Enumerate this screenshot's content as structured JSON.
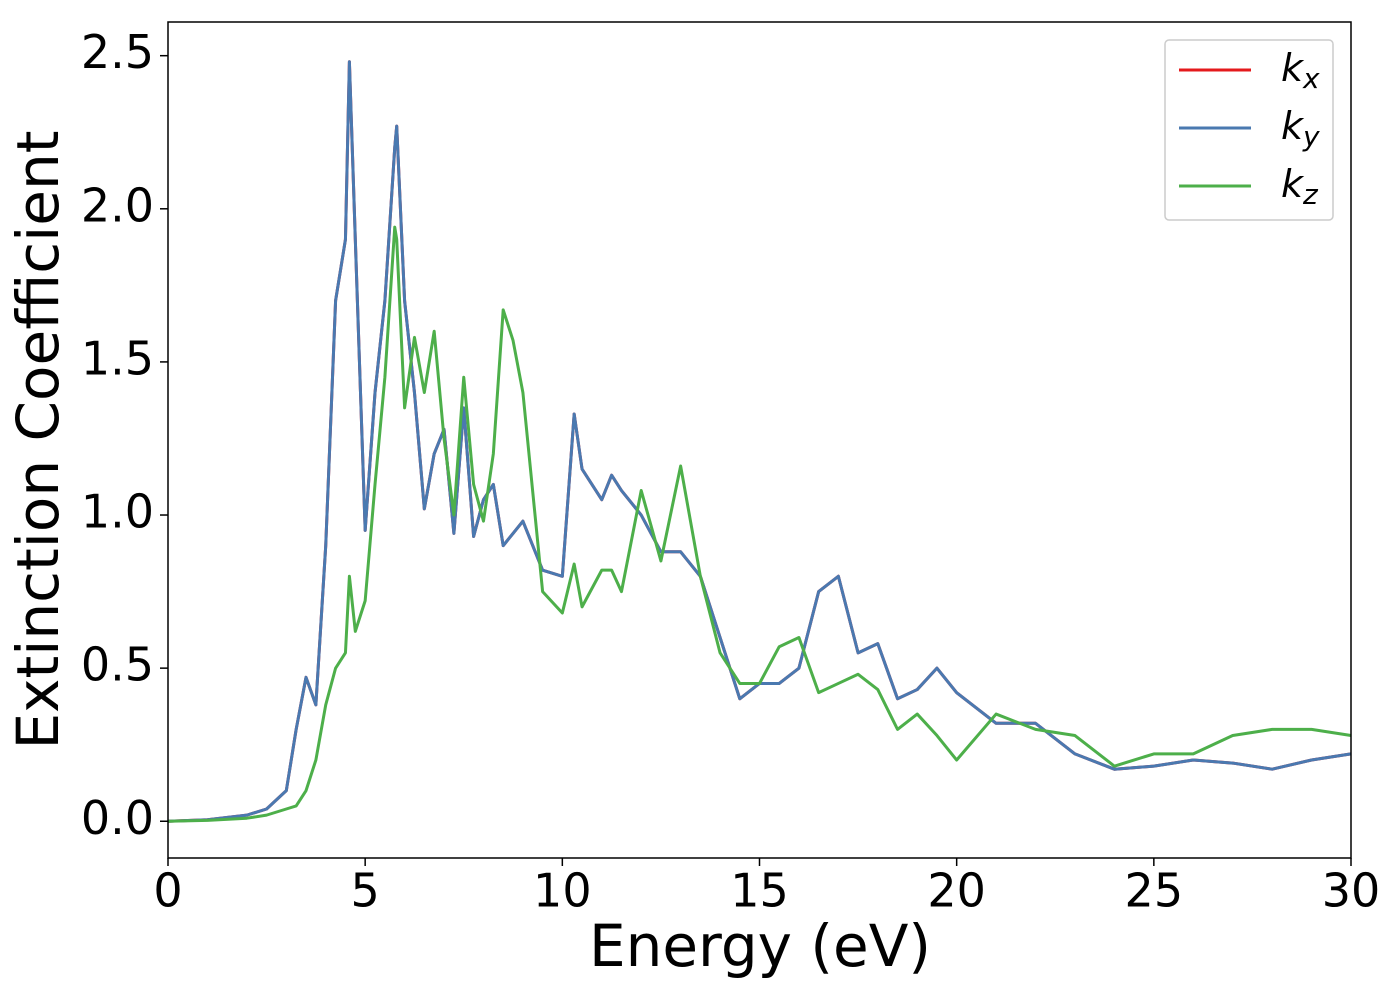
{
  "chart_data": {
    "type": "line",
    "xlabel": "Energy (eV)",
    "ylabel": "Extinction Coefficient",
    "x": [
      0,
      1,
      2,
      2.5,
      3,
      3.25,
      3.5,
      3.75,
      4,
      4.25,
      4.5,
      4.6,
      4.75,
      5,
      5.25,
      5.5,
      5.75,
      5.8,
      6,
      6.25,
      6.5,
      6.75,
      7,
      7.25,
      7.5,
      7.75,
      8,
      8.25,
      8.5,
      8.75,
      9,
      9.5,
      10,
      10.3,
      10.5,
      11,
      11.25,
      11.5,
      12,
      12.5,
      13,
      13.5,
      14,
      14.5,
      15,
      15.5,
      16,
      16.5,
      17,
      17.5,
      18,
      18.5,
      19,
      19.5,
      20,
      21,
      22,
      23,
      24,
      25,
      26,
      27,
      28,
      29,
      30
    ],
    "series": [
      {
        "name": "kx",
        "color": "#e41a1c",
        "values": [
          0,
          0.005,
          0.02,
          0.04,
          0.1,
          0.3,
          0.47,
          0.38,
          0.9,
          1.7,
          1.9,
          2.48,
          1.9,
          0.95,
          1.4,
          1.7,
          2.2,
          2.27,
          1.7,
          1.4,
          1.02,
          1.2,
          1.28,
          0.94,
          1.35,
          0.93,
          1.05,
          1.1,
          0.9,
          0.94,
          0.98,
          0.82,
          0.8,
          1.33,
          1.15,
          1.05,
          1.13,
          1.08,
          1.0,
          0.88,
          0.88,
          0.8,
          0.6,
          0.4,
          0.45,
          0.45,
          0.5,
          0.75,
          0.8,
          0.55,
          0.58,
          0.4,
          0.43,
          0.5,
          0.42,
          0.32,
          0.32,
          0.22,
          0.17,
          0.18,
          0.2,
          0.19,
          0.17,
          0.2,
          0.22
        ]
      },
      {
        "name": "ky",
        "color": "#4a79b0",
        "values": [
          0,
          0.005,
          0.02,
          0.04,
          0.1,
          0.3,
          0.47,
          0.38,
          0.9,
          1.7,
          1.9,
          2.48,
          1.9,
          0.95,
          1.4,
          1.7,
          2.2,
          2.27,
          1.7,
          1.4,
          1.02,
          1.2,
          1.28,
          0.94,
          1.35,
          0.93,
          1.05,
          1.1,
          0.9,
          0.94,
          0.98,
          0.82,
          0.8,
          1.33,
          1.15,
          1.05,
          1.13,
          1.08,
          1.0,
          0.88,
          0.88,
          0.8,
          0.6,
          0.4,
          0.45,
          0.45,
          0.5,
          0.75,
          0.8,
          0.55,
          0.58,
          0.4,
          0.43,
          0.5,
          0.42,
          0.32,
          0.32,
          0.22,
          0.17,
          0.18,
          0.2,
          0.19,
          0.17,
          0.2,
          0.22
        ]
      },
      {
        "name": "kz",
        "color": "#4daf4a",
        "values": [
          0,
          0.003,
          0.01,
          0.02,
          0.04,
          0.05,
          0.1,
          0.2,
          0.38,
          0.5,
          0.55,
          0.8,
          0.62,
          0.72,
          1.1,
          1.45,
          1.94,
          1.9,
          1.35,
          1.58,
          1.4,
          1.6,
          1.25,
          1.0,
          1.45,
          1.1,
          0.98,
          1.2,
          1.67,
          1.57,
          1.4,
          0.75,
          0.68,
          0.84,
          0.7,
          0.82,
          0.82,
          0.75,
          1.08,
          0.85,
          1.16,
          0.8,
          0.55,
          0.45,
          0.45,
          0.57,
          0.6,
          0.42,
          0.45,
          0.48,
          0.43,
          0.3,
          0.35,
          0.28,
          0.2,
          0.35,
          0.3,
          0.28,
          0.18,
          0.22,
          0.22,
          0.28,
          0.3,
          0.3,
          0.28
        ]
      }
    ],
    "xlim": [
      0,
      30
    ],
    "xticks": [
      0,
      5,
      10,
      15,
      20,
      25,
      30
    ],
    "ylim": [
      -0.12,
      2.61
    ],
    "yticks": [
      {
        "value": 0,
        "label": "0.0"
      },
      0.5,
      {
        "value": 1,
        "label": "1.0"
      },
      1.5,
      {
        "value": 2,
        "label": "2.0"
      },
      2.5
    ],
    "grid": false,
    "legend": "upper right"
  }
}
